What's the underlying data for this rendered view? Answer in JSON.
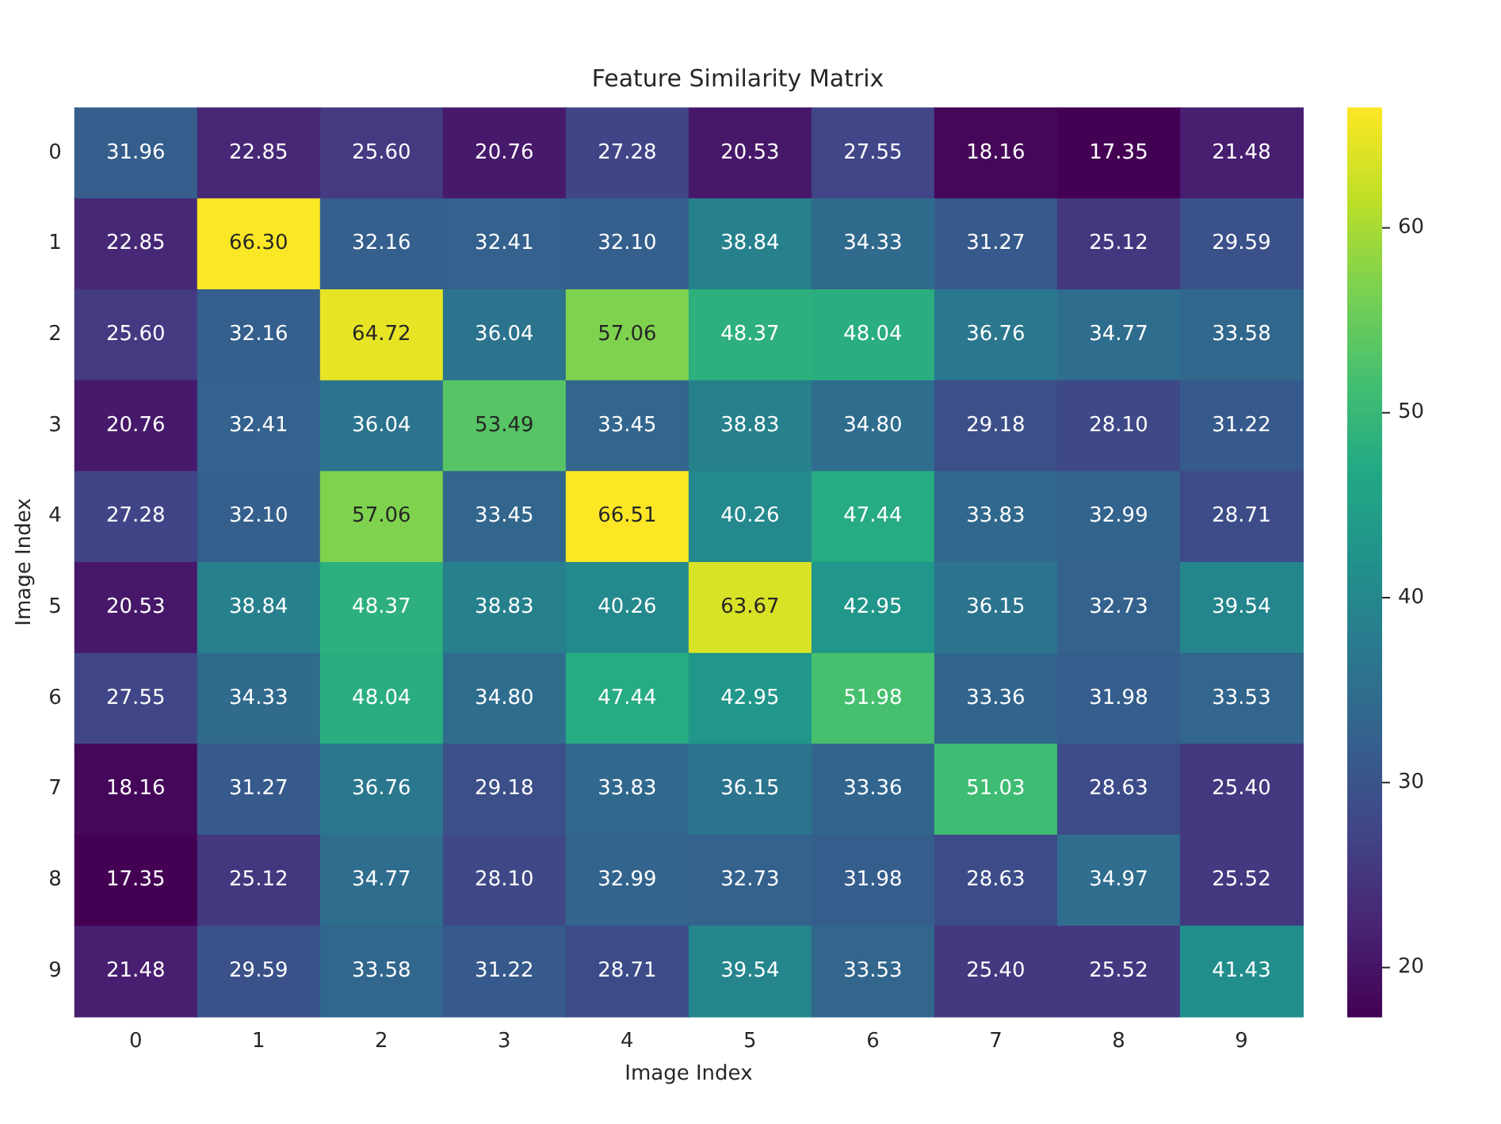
{
  "chart_data": {
    "type": "heatmap",
    "title": "Feature Similarity Matrix",
    "xlabel": "Image Index",
    "ylabel": "Image Index",
    "categories": [
      "0",
      "1",
      "2",
      "3",
      "4",
      "5",
      "6",
      "7",
      "8",
      "9"
    ],
    "y_categories": [
      "0",
      "1",
      "2",
      "3",
      "4",
      "5",
      "6",
      "7",
      "8",
      "9"
    ],
    "cells": [
      [
        31.96,
        22.85,
        25.6,
        20.76,
        27.28,
        20.53,
        27.55,
        18.16,
        17.35,
        21.48
      ],
      [
        22.85,
        66.3,
        32.16,
        32.41,
        32.1,
        38.84,
        34.33,
        31.27,
        25.12,
        29.59
      ],
      [
        25.6,
        32.16,
        64.72,
        36.04,
        57.06,
        48.37,
        48.04,
        36.76,
        34.77,
        33.58
      ],
      [
        20.76,
        32.41,
        36.04,
        53.49,
        33.45,
        38.83,
        34.8,
        29.18,
        28.1,
        31.22
      ],
      [
        27.28,
        32.1,
        57.06,
        33.45,
        66.51,
        40.26,
        47.44,
        33.83,
        32.99,
        28.71
      ],
      [
        20.53,
        38.84,
        48.37,
        38.83,
        40.26,
        63.67,
        42.95,
        36.15,
        32.73,
        39.54
      ],
      [
        27.55,
        34.33,
        48.04,
        34.8,
        47.44,
        42.95,
        51.98,
        33.36,
        31.98,
        33.53
      ],
      [
        18.16,
        31.27,
        36.76,
        29.18,
        33.83,
        36.15,
        33.36,
        51.03,
        28.63,
        25.4
      ],
      [
        17.35,
        25.12,
        34.77,
        28.1,
        32.99,
        32.73,
        31.98,
        28.63,
        34.97,
        25.52
      ],
      [
        21.48,
        29.59,
        33.58,
        31.22,
        28.71,
        39.54,
        33.53,
        25.4,
        25.52,
        41.43
      ]
    ],
    "cell_labels": [
      [
        "31.96",
        "22.85",
        "25.60",
        "20.76",
        "27.28",
        "20.53",
        "27.55",
        "18.16",
        "17.35",
        "21.48"
      ],
      [
        "22.85",
        "66.30",
        "32.16",
        "32.41",
        "32.10",
        "38.84",
        "34.33",
        "31.27",
        "25.12",
        "29.59"
      ],
      [
        "25.60",
        "32.16",
        "64.72",
        "36.04",
        "57.06",
        "48.37",
        "48.04",
        "36.76",
        "34.77",
        "33.58"
      ],
      [
        "20.76",
        "32.41",
        "36.04",
        "53.49",
        "33.45",
        "38.83",
        "34.80",
        "29.18",
        "28.10",
        "31.22"
      ],
      [
        "27.28",
        "32.10",
        "57.06",
        "33.45",
        "66.51",
        "40.26",
        "47.44",
        "33.83",
        "32.99",
        "28.71"
      ],
      [
        "20.53",
        "38.84",
        "48.37",
        "38.83",
        "40.26",
        "63.67",
        "42.95",
        "36.15",
        "32.73",
        "39.54"
      ],
      [
        "27.55",
        "34.33",
        "48.04",
        "34.80",
        "47.44",
        "42.95",
        "51.98",
        "33.36",
        "31.98",
        "33.53"
      ],
      [
        "18.16",
        "31.27",
        "36.76",
        "29.18",
        "33.83",
        "36.15",
        "33.36",
        "51.03",
        "28.63",
        "25.40"
      ],
      [
        "17.35",
        "25.12",
        "34.77",
        "28.10",
        "32.99",
        "32.73",
        "31.98",
        "28.63",
        "34.97",
        "25.52"
      ],
      [
        "21.48",
        "29.59",
        "33.58",
        "31.22",
        "28.71",
        "39.54",
        "33.53",
        "25.40",
        "25.52",
        "41.43"
      ]
    ],
    "clim": [
      17.35,
      66.51
    ],
    "cticks": [
      20,
      30,
      40,
      50,
      60
    ]
  }
}
